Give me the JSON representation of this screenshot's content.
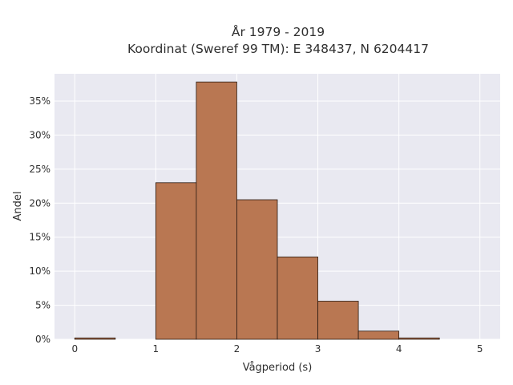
{
  "chart_data": {
    "type": "bar",
    "title_lines": [
      "År 1979 - 2019",
      "Koordinat (Sweref 99 TM): E 348437, N 6204417"
    ],
    "xlabel": "Vågperiod (s)",
    "ylabel": "Andel",
    "bins": [
      {
        "x0": 0.0,
        "x1": 0.5,
        "value": 0.2
      },
      {
        "x0": 0.5,
        "x1": 1.0,
        "value": 0.0
      },
      {
        "x0": 1.0,
        "x1": 1.5,
        "value": 23.0
      },
      {
        "x0": 1.5,
        "x1": 2.0,
        "value": 37.8
      },
      {
        "x0": 2.0,
        "x1": 2.5,
        "value": 20.5
      },
      {
        "x0": 2.5,
        "x1": 3.0,
        "value": 12.1
      },
      {
        "x0": 3.0,
        "x1": 3.5,
        "value": 5.6
      },
      {
        "x0": 3.5,
        "x1": 4.0,
        "value": 1.2
      },
      {
        "x0": 4.0,
        "x1": 4.5,
        "value": 0.2
      },
      {
        "x0": 4.5,
        "x1": 5.0,
        "value": 0.0
      }
    ],
    "xlim": [
      -0.25,
      5.25
    ],
    "ylim": [
      0,
      39
    ],
    "xticks": [
      0,
      1,
      2,
      3,
      4,
      5
    ],
    "yticks": [
      0,
      5,
      10,
      15,
      20,
      25,
      30,
      35
    ],
    "ytick_suffix": "%",
    "grid": true,
    "colors": {
      "bar_fill": "#b97752",
      "bar_edge": "#2b1b12",
      "plot_bg": "#e9e9f1"
    }
  }
}
